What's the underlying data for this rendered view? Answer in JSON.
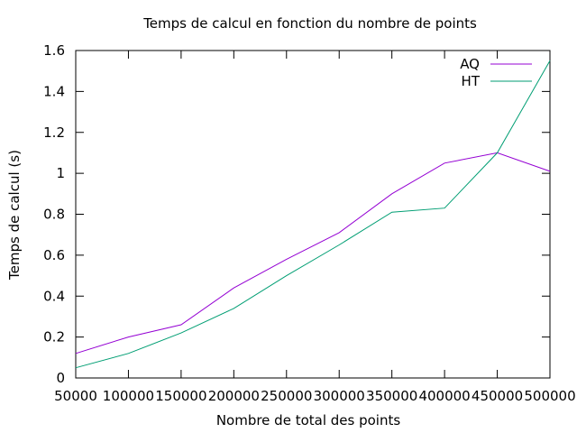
{
  "chart_data": {
    "type": "line",
    "title": "Temps de calcul en fonction du nombre de points",
    "xlabel": "Nombre de total des points",
    "ylabel": "Temps de calcul (s)",
    "xlim": [
      50000,
      500000
    ],
    "ylim": [
      0,
      1.6
    ],
    "x_ticks": [
      50000,
      100000,
      150000,
      200000,
      250000,
      300000,
      350000,
      400000,
      450000,
      500000
    ],
    "x_tick_labels": [
      "50000",
      "100000",
      "150000",
      "200000",
      "250000",
      "300000",
      "350000",
      "400000",
      "450000",
      "500000"
    ],
    "y_ticks": [
      0,
      0.2,
      0.4,
      0.6,
      0.8,
      1,
      1.2,
      1.4,
      1.6
    ],
    "y_tick_labels": [
      "0",
      "0.2",
      "0.4",
      "0.6",
      "0.8",
      "1",
      "1.2",
      "1.4",
      "1.6"
    ],
    "grid": false,
    "legend_position": "top-right",
    "x": [
      50000,
      100000,
      150000,
      200000,
      250000,
      300000,
      350000,
      400000,
      450000,
      500000
    ],
    "series": [
      {
        "name": "AQ",
        "color": "#9400d3",
        "values": [
          0.12,
          0.2,
          0.26,
          0.44,
          0.58,
          0.71,
          0.9,
          1.05,
          1.1,
          1.01
        ]
      },
      {
        "name": "HT",
        "color": "#009e73",
        "values": [
          0.05,
          0.12,
          0.22,
          0.34,
          0.5,
          0.65,
          0.81,
          0.83,
          1.1,
          1.55
        ]
      }
    ]
  }
}
